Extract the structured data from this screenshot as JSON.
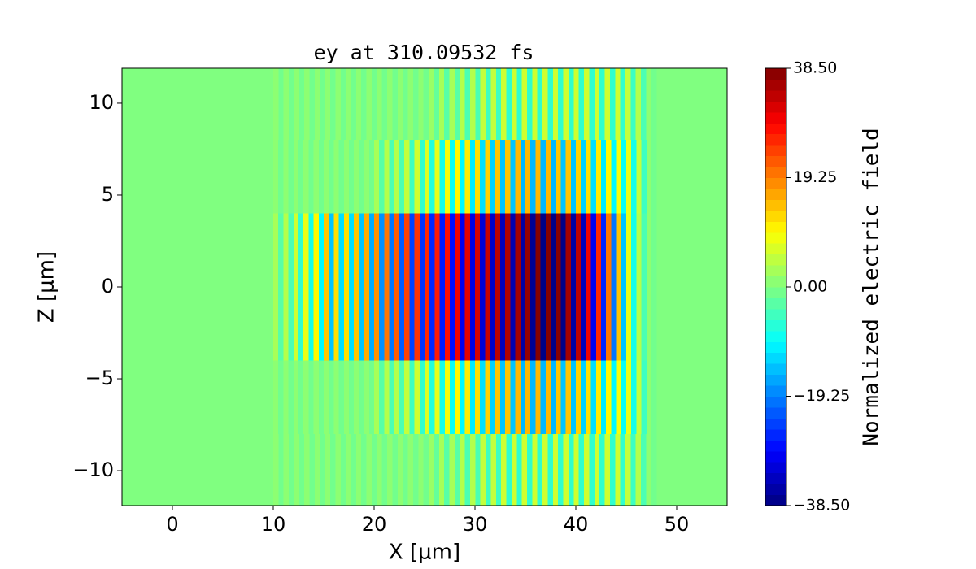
{
  "chart_data": {
    "type": "heatmap",
    "title": "ey at 310.09532 fs",
    "x_label": "X [μm]",
    "y_label": "Z [μm]",
    "colorbar_label": "Normalized electric field",
    "colormap": "jet",
    "clim": [
      -38.5,
      38.5
    ],
    "xlim": [
      -5,
      55
    ],
    "ylim": [
      -11.9,
      11.9
    ],
    "xticks": [
      0,
      10,
      20,
      30,
      40,
      50
    ],
    "yticks": [
      {
        "value": -10,
        "label": "−10"
      },
      {
        "value": -5,
        "label": "−5"
      },
      0,
      5,
      10
    ],
    "colorbar_ticks": [
      {
        "value": -38.5,
        "label": "−38.50"
      },
      {
        "value": -19.25,
        "label": "−19.25"
      },
      {
        "value": 0,
        "label": "0.00"
      },
      {
        "value": 19.25,
        "label": "19.25"
      },
      {
        "value": 38.5,
        "label": "38.50"
      }
    ],
    "rows": [
      {
        "z": [
          8,
          12
        ],
        "x": [
          10,
          48
        ],
        "values": [
          1,
          -1,
          1,
          -1,
          1,
          -1,
          1,
          -1,
          1,
          -1,
          1,
          -1,
          1,
          -1,
          1,
          -1,
          1,
          -1,
          1,
          -1,
          1,
          -1,
          1,
          -1,
          1,
          -1,
          1,
          -1,
          1,
          -1,
          2,
          -2,
          3,
          -3,
          3,
          -3,
          4,
          -4,
          4,
          -4,
          5,
          -5,
          5,
          -5,
          6,
          -6,
          6,
          -6,
          6,
          -6,
          6,
          -6,
          6,
          -6,
          6,
          -6,
          6,
          -6,
          6,
          -6,
          6,
          -6,
          6,
          -6,
          6,
          -6,
          6,
          -6,
          5,
          -5,
          4,
          -4,
          1,
          -1
        ]
      },
      {
        "z": [
          4,
          8
        ],
        "x": [
          10,
          48
        ],
        "values": [
          1,
          -1,
          1,
          -1,
          1,
          -1,
          1,
          -1,
          1,
          -1,
          1,
          -1,
          1,
          -1,
          1,
          -1,
          1,
          -1,
          1,
          -1,
          3,
          -3,
          4,
          -4,
          4,
          -4,
          5,
          -5,
          6,
          -6,
          7,
          -7,
          8,
          -8,
          9,
          -9,
          10,
          -10,
          11,
          -11,
          12,
          -12,
          13,
          -13,
          14,
          -14,
          14,
          -14,
          15,
          -15,
          15,
          -15,
          15,
          -15,
          15,
          -15,
          14,
          -14,
          14,
          -14,
          13,
          -13,
          12,
          -12,
          11,
          -11,
          10,
          -10,
          9,
          -9,
          8,
          -8,
          5,
          -5,
          1,
          -1
        ]
      },
      {
        "z": [
          0,
          4
        ],
        "x": [
          10,
          48
        ],
        "values": [
          3,
          -3,
          4,
          -4,
          6,
          -6,
          8,
          -8,
          10,
          -10,
          14,
          -14,
          12,
          -12,
          12,
          -12,
          14,
          -14,
          16,
          -16,
          18,
          -18,
          20,
          -20,
          22,
          -22,
          24,
          -24,
          25,
          -25,
          26,
          -26,
          27,
          -27,
          28,
          -28,
          30,
          -30,
          31,
          -31,
          32,
          -32,
          33,
          -33,
          34,
          -34,
          35,
          -35,
          36,
          -36,
          37,
          -37,
          38,
          -38,
          38,
          -38,
          38,
          -38,
          36,
          -36,
          34,
          -34,
          30,
          -30,
          26,
          -26,
          20,
          -20,
          14,
          -14,
          8,
          -8,
          4,
          -4,
          1,
          -1
        ]
      },
      {
        "z": [
          -4,
          0
        ],
        "x": [
          10,
          48
        ],
        "values": [
          3,
          -3,
          4,
          -4,
          6,
          -6,
          8,
          -8,
          10,
          -10,
          14,
          -14,
          12,
          -12,
          12,
          -12,
          14,
          -14,
          16,
          -16,
          18,
          -18,
          20,
          -20,
          22,
          -22,
          24,
          -24,
          25,
          -25,
          26,
          -26,
          27,
          -27,
          28,
          -28,
          30,
          -30,
          31,
          -31,
          32,
          -32,
          33,
          -33,
          34,
          -34,
          35,
          -35,
          36,
          -36,
          37,
          -37,
          38,
          -38,
          38,
          -38,
          38,
          -38,
          36,
          -36,
          34,
          -34,
          30,
          -30,
          26,
          -26,
          20,
          -20,
          14,
          -14,
          8,
          -8,
          4,
          -4,
          1,
          -1
        ]
      },
      {
        "z": [
          -8,
          -4
        ],
        "x": [
          10,
          48
        ],
        "values": [
          1,
          -1,
          1,
          -1,
          1,
          -1,
          1,
          -1,
          1,
          -1,
          1,
          -1,
          1,
          -1,
          1,
          -1,
          1,
          -1,
          1,
          -1,
          3,
          -3,
          4,
          -4,
          4,
          -4,
          5,
          -5,
          6,
          -6,
          7,
          -7,
          8,
          -8,
          9,
          -9,
          10,
          -10,
          11,
          -11,
          12,
          -12,
          13,
          -13,
          14,
          -14,
          14,
          -14,
          15,
          -15,
          15,
          -15,
          15,
          -15,
          15,
          -15,
          14,
          -14,
          14,
          -14,
          13,
          -13,
          12,
          -12,
          11,
          -11,
          10,
          -10,
          9,
          -9,
          8,
          -8,
          5,
          -5,
          1,
          -1
        ]
      },
      {
        "z": [
          -12,
          -8
        ],
        "x": [
          10,
          48
        ],
        "values": [
          1,
          -1,
          1,
          -1,
          1,
          -1,
          1,
          -1,
          1,
          -1,
          1,
          -1,
          1,
          -1,
          1,
          -1,
          1,
          -1,
          1,
          -1,
          1,
          -1,
          1,
          -1,
          1,
          -1,
          1,
          -1,
          1,
          -1,
          2,
          -2,
          3,
          -3,
          3,
          -3,
          4,
          -4,
          4,
          -4,
          5,
          -5,
          5,
          -5,
          6,
          -6,
          6,
          -6,
          6,
          -6,
          6,
          -6,
          6,
          -6,
          6,
          -6,
          6,
          -6,
          6,
          -6,
          6,
          -6,
          6,
          -6,
          6,
          -6,
          6,
          -6,
          5,
          -5,
          4,
          -4,
          1,
          -1
        ]
      }
    ]
  }
}
